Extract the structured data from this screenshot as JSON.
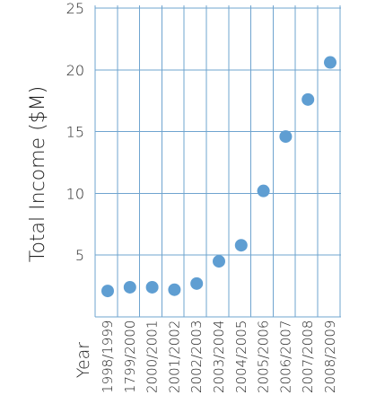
{
  "chart_data": {
    "type": "scatter",
    "title": "",
    "xlabel": "Year",
    "ylabel": "Total Income ($M)",
    "categories": [
      "1998/1999",
      "1799/2000",
      "2000/2001",
      "2001/2002",
      "2002/2003",
      "2003/2004",
      "2004/2005",
      "2005/2006",
      "2006/2007",
      "2007/2008",
      "2008/2009"
    ],
    "values": [
      2.1,
      2.4,
      2.4,
      2.2,
      2.7,
      4.5,
      5.8,
      10.2,
      14.6,
      17.6,
      20.6
    ],
    "ylim": [
      0,
      25
    ],
    "y_ticks": [
      5,
      10,
      15,
      20,
      25
    ],
    "grid": true,
    "colors": {
      "grid": "#6fa4cf",
      "marker": "#5f9ed2",
      "text": "#1f1f1f"
    }
  }
}
